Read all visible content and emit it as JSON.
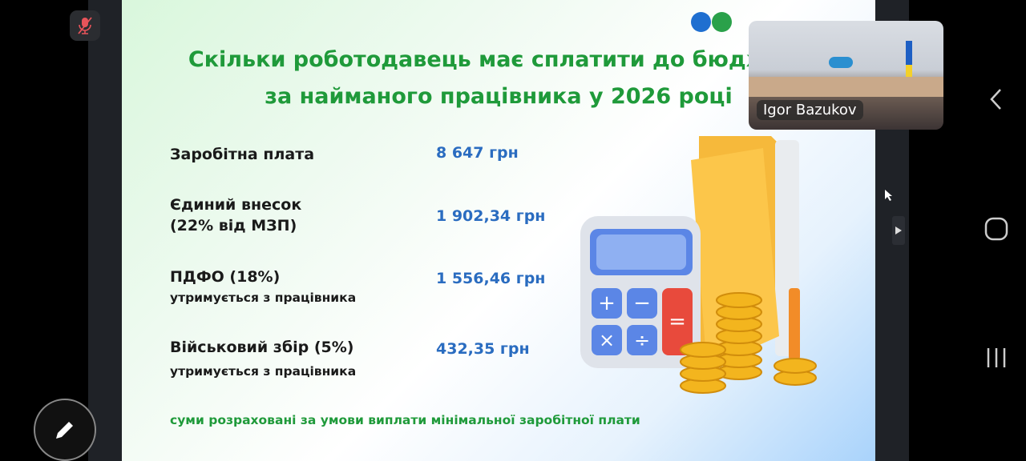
{
  "meeting": {
    "mic_state": "muted",
    "participant_name": "Igor Bazukov"
  },
  "slide": {
    "title_line1": "Скільки роботодавець має сплатити до бюджету",
    "title_line2": "за найманого працівника у 2026 році",
    "logo_colors": [
      "#1f6fd0",
      "#2aa14a"
    ],
    "rows": [
      {
        "label": "Заробітна плата",
        "sub": "",
        "value": "8 647 грн"
      },
      {
        "label": "Єдиний внесок",
        "sub": "(22% від МЗП)",
        "value": "1 902,34 грн"
      },
      {
        "label": "ПДФО (18%)",
        "sub": "утримується з працівника",
        "value": "1 556,46 грн"
      },
      {
        "label": "Військовий збір (5%)",
        "sub": "утримується з працівника",
        "value": "432,35 грн"
      }
    ],
    "note": "суми розраховані за умови виплати мінімальної заробітної плати",
    "colors": {
      "title": "#1f9a3a",
      "values": "#2a6cc0"
    }
  },
  "nav": {
    "back": "back-icon",
    "home": "home-icon",
    "recents": "recents-icon",
    "annotate": "pencil-icon"
  }
}
